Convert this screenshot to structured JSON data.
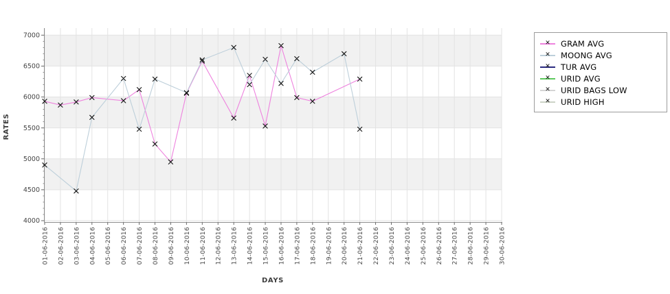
{
  "chart_data": {
    "type": "line",
    "xlabel": "DAYS",
    "ylabel": "RATES",
    "ylim": [
      4000,
      7000
    ],
    "yticks": [
      4000,
      4500,
      5000,
      5500,
      6000,
      6500,
      7000
    ],
    "y_minor_step": 100,
    "grid": true,
    "legend_position": "right",
    "shaded_bands": [
      [
        4500,
        5000
      ],
      [
        5500,
        6000
      ],
      [
        6500,
        7000
      ]
    ],
    "band_fill": "#f1f1f1",
    "gridline_color": "#e3e3e3",
    "axis_color": "#8c8c8c",
    "tick_label_color": "#444444",
    "marker_color": "#141414",
    "categories": [
      "01-06-2016",
      "02-06-2016",
      "03-06-2016",
      "04-06-2016",
      "05-06-2016",
      "06-06-2016",
      "07-06-2016",
      "08-06-2016",
      "09-06-2016",
      "10-06-2016",
      "11-06-2016",
      "12-06-2016",
      "13-06-2016",
      "14-06-2016",
      "15-06-2016",
      "16-06-2016",
      "17-06-2016",
      "18-06-2016",
      "19-06-2016",
      "20-06-2016",
      "21-06-2016",
      "22-06-2016",
      "23-06-2016",
      "24-06-2016",
      "25-06-2016",
      "26-06-2016",
      "27-06-2016",
      "28-06-2016",
      "29-06-2016",
      "30-06-2016"
    ],
    "series": [
      {
        "name": "GRAM AVG",
        "color": "#ee82de",
        "marker": "x",
        "points": {
          "01-06-2016": 5930,
          "02-06-2016": 5870,
          "03-06-2016": 5920,
          "04-06-2016": 5990,
          "06-06-2016": 5940,
          "07-06-2016": 6120,
          "08-06-2016": 5240,
          "09-06-2016": 4950,
          "10-06-2016": 6060,
          "11-06-2016": 6580,
          "13-06-2016": 5660,
          "14-06-2016": 6350,
          "15-06-2016": 5530,
          "16-06-2016": 6830,
          "17-06-2016": 5990,
          "18-06-2016": 5930,
          "21-06-2016": 6290
        }
      },
      {
        "name": "MOONG AVG",
        "color": "#bdcfda",
        "marker": "x",
        "points": {
          "01-06-2016": 4900,
          "03-06-2016": 4480,
          "04-06-2016": 5670,
          "06-06-2016": 6300,
          "07-06-2016": 5480,
          "08-06-2016": 6290,
          "10-06-2016": 6070,
          "11-06-2016": 6600,
          "13-06-2016": 6800,
          "14-06-2016": 6200,
          "15-06-2016": 6610,
          "16-06-2016": 6220,
          "17-06-2016": 6620,
          "18-06-2016": 6400,
          "20-06-2016": 6700,
          "21-06-2016": 5480
        }
      },
      {
        "name": "TUR AVG",
        "color": "#2a2a80",
        "marker": "x",
        "points": {}
      },
      {
        "name": "URID AVG",
        "color": "#5cc95c",
        "marker": "x",
        "points": {}
      },
      {
        "name": "URID BAGS LOW",
        "color": "#d4d4d4",
        "marker": "x",
        "points": {}
      },
      {
        "name": "URID HIGH",
        "color": "#ccd3c6",
        "marker": "x",
        "points": {}
      }
    ]
  }
}
